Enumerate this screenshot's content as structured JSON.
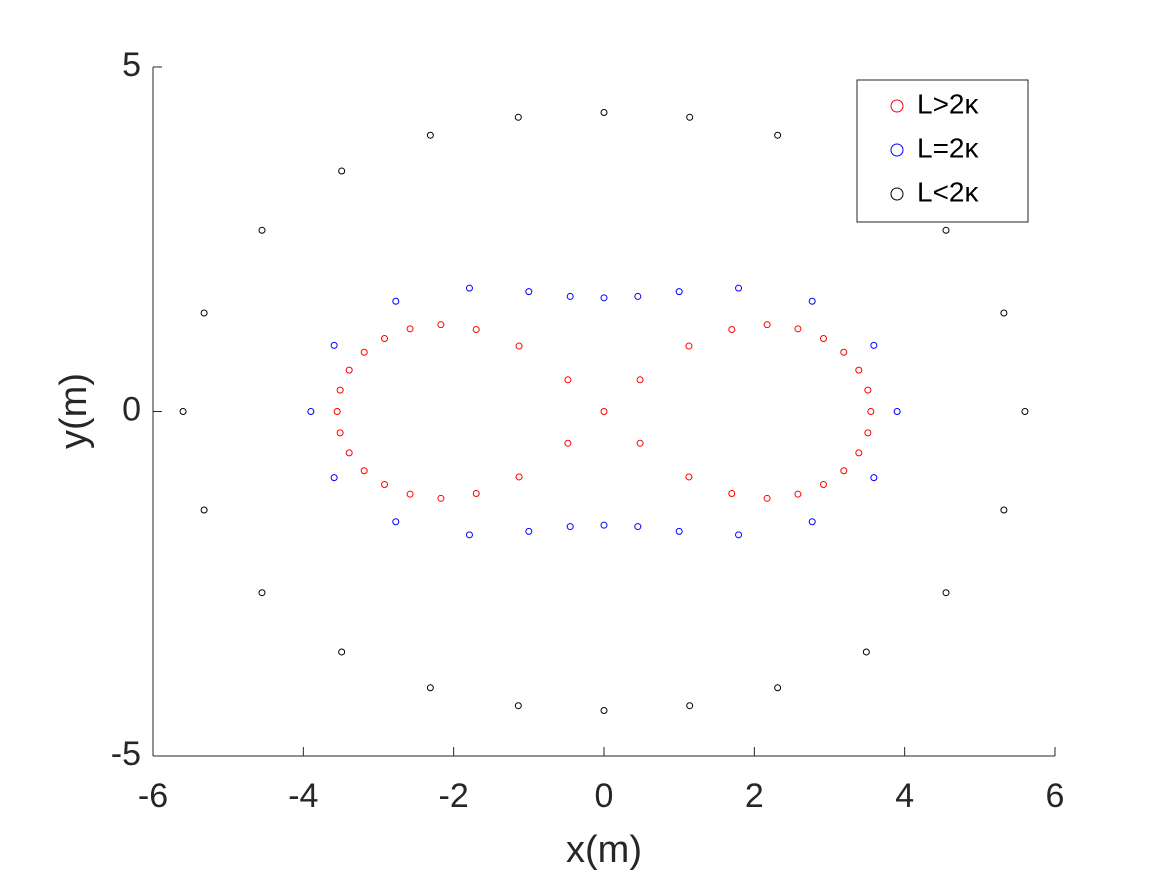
{
  "chart_data": {
    "type": "scatter",
    "xlabel": "x(m)",
    "ylabel": "y(m)",
    "xlim": [
      -6,
      6
    ],
    "ylim": [
      -5,
      5
    ],
    "xticks": [
      -6,
      -4,
      -2,
      0,
      2,
      4,
      6
    ],
    "yticks": [
      -5,
      0,
      5
    ],
    "legend_position": "upper right",
    "series": [
      {
        "name": "L>2κ",
        "color": "#ff0000",
        "x": [
          3.55,
          3.51,
          3.39,
          3.19,
          2.92,
          2.58,
          2.17,
          1.7,
          1.13,
          0.48,
          0.48,
          1.13,
          1.7,
          2.17,
          2.58,
          2.92,
          3.19,
          3.39,
          3.51,
          -3.55,
          -3.51,
          -3.39,
          -3.19,
          -2.92,
          -2.58,
          -2.17,
          -1.7,
          -1.13,
          -0.48,
          -0.48,
          -1.13,
          -1.7,
          -2.17,
          -2.58,
          -2.92,
          -3.19,
          -3.39,
          -3.51,
          0
        ],
        "y": [
          0,
          0.31,
          0.6,
          0.86,
          1.06,
          1.2,
          1.26,
          1.19,
          0.95,
          0.46,
          -0.46,
          -0.95,
          -1.19,
          -1.26,
          -1.2,
          -1.06,
          -0.86,
          -0.6,
          -0.31,
          0,
          0.31,
          0.6,
          0.86,
          1.06,
          1.2,
          1.26,
          1.19,
          0.95,
          0.46,
          -0.46,
          -0.95,
          -1.19,
          -1.26,
          -1.2,
          -1.06,
          -0.86,
          -0.6,
          -0.31,
          0
        ]
      },
      {
        "name": "L=2κ",
        "color": "#0000ff",
        "x": [
          3.9,
          3.59,
          2.77,
          1.79,
          1.0,
          0.45,
          0,
          -0.45,
          -1.0,
          -1.79,
          -2.77,
          -3.59,
          -3.9,
          -3.59,
          -2.77,
          -1.79,
          -1.0,
          -0.45,
          0,
          0.45,
          1.0,
          1.79,
          2.77,
          3.59
        ],
        "y": [
          0,
          0.96,
          1.6,
          1.79,
          1.74,
          1.67,
          1.65,
          1.67,
          1.74,
          1.79,
          1.6,
          0.96,
          0,
          -0.96,
          -1.6,
          -1.79,
          -1.74,
          -1.67,
          -1.65,
          -1.67,
          -1.74,
          -1.79,
          -1.6,
          -0.96
        ]
      },
      {
        "name": "L<2κ",
        "color": "#000000",
        "x": [
          5.6,
          5.32,
          4.55,
          3.49,
          2.31,
          1.14,
          0,
          -1.14,
          -2.31,
          -3.49,
          -4.55,
          -5.32,
          -5.6,
          -5.32,
          -4.55,
          -3.49,
          -2.31,
          -1.14,
          0,
          1.14,
          2.31,
          3.49,
          4.55,
          5.32
        ],
        "y": [
          0,
          1.43,
          2.63,
          3.49,
          4.01,
          4.27,
          4.34,
          4.27,
          4.01,
          3.49,
          2.63,
          1.43,
          0,
          -1.43,
          -2.63,
          -3.49,
          -4.01,
          -4.27,
          -4.34,
          -4.27,
          -4.01,
          -3.49,
          -2.63,
          -1.43
        ]
      }
    ]
  }
}
